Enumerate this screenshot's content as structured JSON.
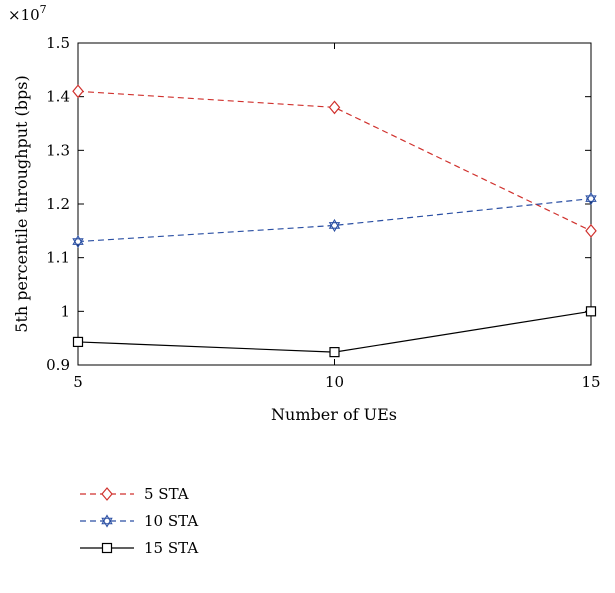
{
  "chart_data": {
    "type": "line",
    "title": "",
    "xlabel": "Number of UEs",
    "ylabel": "5th percentile throughput (bps)",
    "y_multiplier_label": "×10",
    "y_multiplier_exponent": "7",
    "x": [
      5,
      10,
      15
    ],
    "xlim": [
      5,
      15
    ],
    "ylim": [
      0.9,
      1.5
    ],
    "x_ticks": [
      "5",
      "10",
      "15"
    ],
    "y_ticks": [
      "0.9",
      "1",
      "1.1",
      "1.2",
      "1.3",
      "1.4",
      "1.5"
    ],
    "grid": false,
    "legend_position": "below",
    "series": [
      {
        "name": "5 STA",
        "values": [
          1.41,
          1.38,
          1.15
        ],
        "color": "#d0312d",
        "dash": true,
        "marker": "diamond"
      },
      {
        "name": "10 STA",
        "values": [
          1.13,
          1.16,
          1.21
        ],
        "color": "#2a4fa3",
        "dash": true,
        "marker": "hexagram"
      },
      {
        "name": "15 STA",
        "values": [
          0.943,
          0.924,
          1.0
        ],
        "color": "#000000",
        "dash": false,
        "marker": "square"
      }
    ]
  }
}
